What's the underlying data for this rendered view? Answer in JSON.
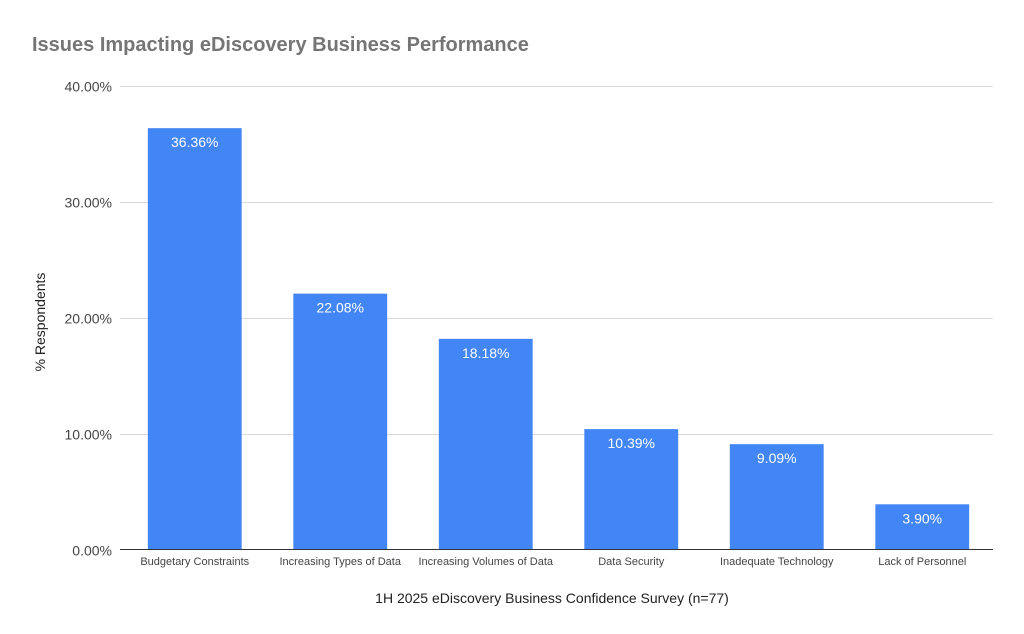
{
  "chart_data": {
    "type": "bar",
    "title": "Issues Impacting eDiscovery Business Performance",
    "xlabel": "1H 2025 eDiscovery Business Confidence Survey (n=77)",
    "ylabel": "% Respondents",
    "categories": [
      "Budgetary Constraints",
      "Increasing Types of Data",
      "Increasing Volumes of Data",
      "Data Security",
      "Inadequate Technology",
      "Lack of Personnel"
    ],
    "values": [
      36.36,
      22.08,
      18.18,
      10.39,
      9.09,
      3.9
    ],
    "value_labels": [
      "36.36%",
      "22.08%",
      "18.18%",
      "10.39%",
      "9.09%",
      "3.90%"
    ],
    "ylim": [
      0,
      40
    ],
    "yticks": [
      0,
      10,
      20,
      30,
      40
    ],
    "ytick_labels": [
      "0.00%",
      "10.00%",
      "20.00%",
      "30.00%",
      "40.00%"
    ],
    "grid": true,
    "legend": "none",
    "bar_color": "#4285f4"
  }
}
